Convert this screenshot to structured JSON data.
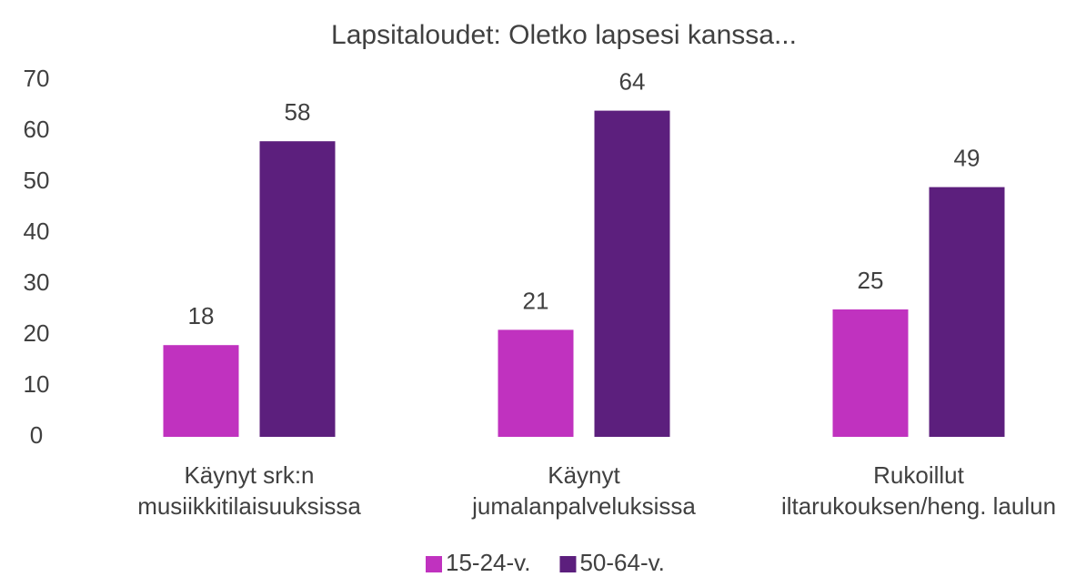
{
  "chart_data": {
    "type": "bar",
    "title": "Lapsitaloudet: Oletko lapsesi kanssa...",
    "categories": [
      "Käynyt srk:n\nmusiikkitilaisuuksissa",
      "Käynyt\njumalanpalveluksissa",
      "Rukoillut\niltarukouksen/heng. laulun"
    ],
    "series": [
      {
        "name": "15-24-v.",
        "color": "#c032bf",
        "values": [
          18,
          21,
          25
        ]
      },
      {
        "name": "50-64-v.",
        "color": "#5c1f7d",
        "values": [
          58,
          64,
          49
        ]
      }
    ],
    "ylim": [
      0,
      70
    ],
    "yticks": [
      0,
      10,
      20,
      30,
      40,
      50,
      60,
      70
    ],
    "grid": false,
    "legend": "bottom"
  }
}
